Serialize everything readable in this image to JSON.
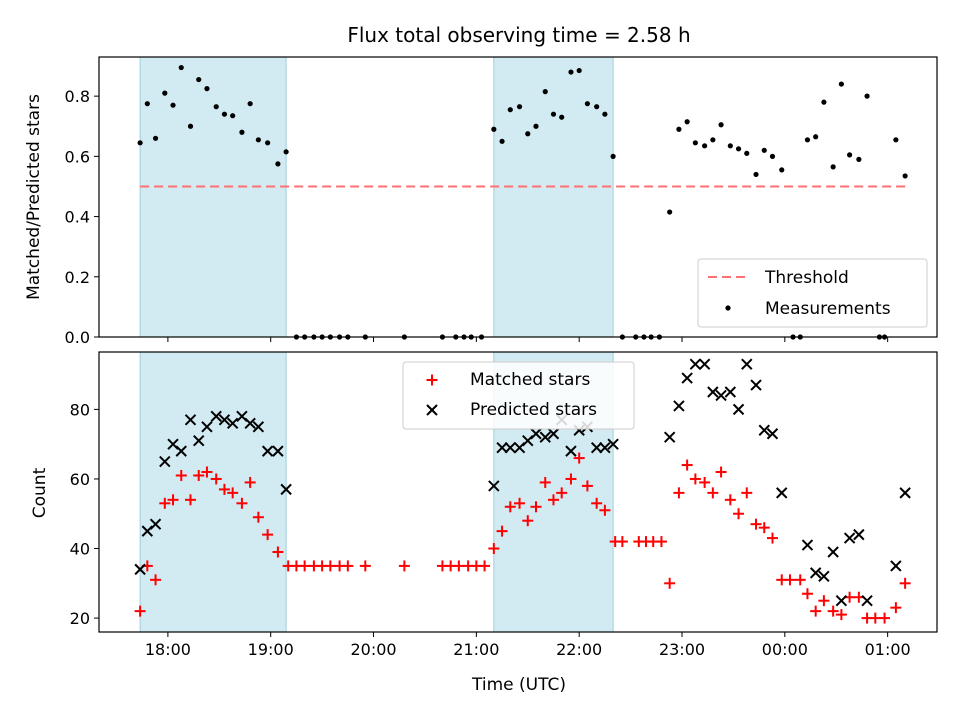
{
  "chart_data": {
    "title": "Flux total observing time = 2.58 h",
    "xlabel": "Time (UTC)",
    "x_unit": "hours (UTC, continuing past midnight)",
    "xlim": [
      17.33,
      25.48
    ],
    "xticks": [
      {
        "value": 18,
        "label": "18:00"
      },
      {
        "value": 19,
        "label": "19:00"
      },
      {
        "value": 20,
        "label": "20:00"
      },
      {
        "value": 21,
        "label": "21:00"
      },
      {
        "value": 22,
        "label": "22:00"
      },
      {
        "value": 23,
        "label": "23:00"
      },
      {
        "value": 24,
        "label": "00:00"
      },
      {
        "value": 25,
        "label": "01:00"
      }
    ],
    "shaded_intervals": [
      [
        17.73,
        19.15
      ],
      [
        21.17,
        22.33
      ]
    ],
    "shade_color": "#add8e6",
    "panels": [
      {
        "type": "scatter",
        "ylabel": "Matched/Predicted stars",
        "ylim": [
          0,
          0.93
        ],
        "yticks": [
          {
            "value": 0.0,
            "label": "0.0"
          },
          {
            "value": 0.2,
            "label": "0.2"
          },
          {
            "value": 0.4,
            "label": "0.4"
          },
          {
            "value": 0.6,
            "label": "0.6"
          },
          {
            "value": 0.8,
            "label": "0.8"
          }
        ],
        "threshold": {
          "name": "Threshold",
          "value": 0.5,
          "color": "#ff7070",
          "style": "dashed"
        },
        "legend_position": "lower-right",
        "series": [
          {
            "name": "Measurements",
            "marker": "dot",
            "color": "#000000",
            "points": [
              [
                17.73,
                0.645
              ],
              [
                17.8,
                0.775
              ],
              [
                17.88,
                0.66
              ],
              [
                17.97,
                0.81
              ],
              [
                18.05,
                0.77
              ],
              [
                18.13,
                0.895
              ],
              [
                18.22,
                0.7
              ],
              [
                18.3,
                0.855
              ],
              [
                18.38,
                0.825
              ],
              [
                18.47,
                0.765
              ],
              [
                18.55,
                0.74
              ],
              [
                18.63,
                0.735
              ],
              [
                18.72,
                0.68
              ],
              [
                18.8,
                0.775
              ],
              [
                18.88,
                0.655
              ],
              [
                18.97,
                0.645
              ],
              [
                19.07,
                0.575
              ],
              [
                19.15,
                0.615
              ],
              [
                19.25,
                0.0
              ],
              [
                19.33,
                0.0
              ],
              [
                19.42,
                0.0
              ],
              [
                19.5,
                0.0
              ],
              [
                19.58,
                0.0
              ],
              [
                19.67,
                0.0
              ],
              [
                19.75,
                0.0
              ],
              [
                19.92,
                0.0
              ],
              [
                20.3,
                0.0
              ],
              [
                20.67,
                0.0
              ],
              [
                20.8,
                0.0
              ],
              [
                20.88,
                0.0
              ],
              [
                20.95,
                0.0
              ],
              [
                21.05,
                0.0
              ],
              [
                21.17,
                0.69
              ],
              [
                21.25,
                0.65
              ],
              [
                21.33,
                0.755
              ],
              [
                21.42,
                0.765
              ],
              [
                21.5,
                0.675
              ],
              [
                21.58,
                0.7
              ],
              [
                21.67,
                0.815
              ],
              [
                21.75,
                0.74
              ],
              [
                21.83,
                0.73
              ],
              [
                21.92,
                0.88
              ],
              [
                22.0,
                0.885
              ],
              [
                22.08,
                0.775
              ],
              [
                22.17,
                0.765
              ],
              [
                22.25,
                0.74
              ],
              [
                22.33,
                0.6
              ],
              [
                22.42,
                0.0
              ],
              [
                22.55,
                0.0
              ],
              [
                22.63,
                0.0
              ],
              [
                22.7,
                0.0
              ],
              [
                22.78,
                0.0
              ],
              [
                22.88,
                0.415
              ],
              [
                22.97,
                0.69
              ],
              [
                23.05,
                0.715
              ],
              [
                23.13,
                0.645
              ],
              [
                23.22,
                0.635
              ],
              [
                23.3,
                0.655
              ],
              [
                23.38,
                0.705
              ],
              [
                23.47,
                0.635
              ],
              [
                23.55,
                0.625
              ],
              [
                23.63,
                0.61
              ],
              [
                23.72,
                0.54
              ],
              [
                23.8,
                0.62
              ],
              [
                23.88,
                0.6
              ],
              [
                23.97,
                0.555
              ],
              [
                24.08,
                0.0
              ],
              [
                24.15,
                0.0
              ],
              [
                24.22,
                0.655
              ],
              [
                24.3,
                0.665
              ],
              [
                24.38,
                0.78
              ],
              [
                24.47,
                0.565
              ],
              [
                24.55,
                0.84
              ],
              [
                24.63,
                0.605
              ],
              [
                24.72,
                0.59
              ],
              [
                24.8,
                0.8
              ],
              [
                24.92,
                0.0
              ],
              [
                24.97,
                0.0
              ],
              [
                25.08,
                0.655
              ],
              [
                25.17,
                0.535
              ]
            ]
          }
        ]
      },
      {
        "type": "scatter",
        "ylabel": "Count",
        "ylim": [
          16,
          96.5
        ],
        "yticks": [
          {
            "value": 20,
            "label": "20"
          },
          {
            "value": 40,
            "label": "40"
          },
          {
            "value": 60,
            "label": "60"
          },
          {
            "value": 80,
            "label": "80"
          }
        ],
        "legend_position": "upper-center",
        "series": [
          {
            "name": "Matched stars",
            "marker": "plus",
            "color": "#ff0000",
            "points": [
              [
                17.73,
                22
              ],
              [
                17.8,
                35
              ],
              [
                17.88,
                31
              ],
              [
                17.97,
                53
              ],
              [
                18.05,
                54
              ],
              [
                18.13,
                61
              ],
              [
                18.22,
                54
              ],
              [
                18.3,
                61
              ],
              [
                18.38,
                62
              ],
              [
                18.47,
                60
              ],
              [
                18.55,
                57
              ],
              [
                18.63,
                56
              ],
              [
                18.72,
                53
              ],
              [
                18.8,
                59
              ],
              [
                18.88,
                49
              ],
              [
                18.97,
                44
              ],
              [
                19.07,
                39
              ],
              [
                19.17,
                35
              ],
              [
                19.25,
                35
              ],
              [
                19.33,
                35
              ],
              [
                19.42,
                35
              ],
              [
                19.5,
                35
              ],
              [
                19.58,
                35
              ],
              [
                19.67,
                35
              ],
              [
                19.75,
                35
              ],
              [
                19.92,
                35
              ],
              [
                20.3,
                35
              ],
              [
                20.67,
                35
              ],
              [
                20.75,
                35
              ],
              [
                20.83,
                35
              ],
              [
                20.92,
                35
              ],
              [
                21.0,
                35
              ],
              [
                21.08,
                35
              ],
              [
                21.17,
                40
              ],
              [
                21.25,
                45
              ],
              [
                21.33,
                52
              ],
              [
                21.42,
                53
              ],
              [
                21.5,
                48
              ],
              [
                21.58,
                52
              ],
              [
                21.67,
                59
              ],
              [
                21.75,
                54
              ],
              [
                21.83,
                56
              ],
              [
                21.92,
                60
              ],
              [
                22.0,
                66
              ],
              [
                22.08,
                58
              ],
              [
                22.17,
                53
              ],
              [
                22.25,
                51
              ],
              [
                22.35,
                42
              ],
              [
                22.42,
                42
              ],
              [
                22.58,
                42
              ],
              [
                22.65,
                42
              ],
              [
                22.72,
                42
              ],
              [
                22.8,
                42
              ],
              [
                22.88,
                30
              ],
              [
                22.97,
                56
              ],
              [
                23.05,
                64
              ],
              [
                23.13,
                60
              ],
              [
                23.22,
                59
              ],
              [
                23.3,
                56
              ],
              [
                23.38,
                62
              ],
              [
                23.47,
                54
              ],
              [
                23.55,
                50
              ],
              [
                23.63,
                56
              ],
              [
                23.72,
                47
              ],
              [
                23.8,
                46
              ],
              [
                23.88,
                43
              ],
              [
                23.97,
                31
              ],
              [
                24.05,
                31
              ],
              [
                24.15,
                31
              ],
              [
                24.22,
                27
              ],
              [
                24.3,
                22
              ],
              [
                24.38,
                25
              ],
              [
                24.47,
                22
              ],
              [
                24.55,
                21
              ],
              [
                24.63,
                26
              ],
              [
                24.72,
                26
              ],
              [
                24.8,
                20
              ],
              [
                24.88,
                20
              ],
              [
                24.97,
                20
              ],
              [
                25.08,
                23
              ],
              [
                25.17,
                30
              ]
            ]
          },
          {
            "name": "Predicted stars",
            "marker": "x",
            "color": "#000000",
            "points": [
              [
                17.73,
                34
              ],
              [
                17.8,
                45
              ],
              [
                17.88,
                47
              ],
              [
                17.97,
                65
              ],
              [
                18.05,
                70
              ],
              [
                18.13,
                68
              ],
              [
                18.22,
                77
              ],
              [
                18.3,
                71
              ],
              [
                18.38,
                75
              ],
              [
                18.47,
                78
              ],
              [
                18.55,
                77
              ],
              [
                18.63,
                76
              ],
              [
                18.72,
                78
              ],
              [
                18.8,
                76
              ],
              [
                18.88,
                75
              ],
              [
                18.97,
                68
              ],
              [
                19.07,
                68
              ],
              [
                19.15,
                57
              ],
              [
                21.17,
                58
              ],
              [
                21.25,
                69
              ],
              [
                21.33,
                69
              ],
              [
                21.42,
                69
              ],
              [
                21.5,
                71
              ],
              [
                21.58,
                73
              ],
              [
                21.67,
                72
              ],
              [
                21.75,
                73
              ],
              [
                21.83,
                77
              ],
              [
                21.92,
                68
              ],
              [
                22.0,
                74
              ],
              [
                22.08,
                75
              ],
              [
                22.17,
                69
              ],
              [
                22.25,
                69
              ],
              [
                22.33,
                70
              ],
              [
                22.88,
                72
              ],
              [
                22.97,
                81
              ],
              [
                23.05,
                89
              ],
              [
                23.13,
                93
              ],
              [
                23.22,
                93
              ],
              [
                23.3,
                85
              ],
              [
                23.38,
                84
              ],
              [
                23.47,
                85
              ],
              [
                23.55,
                80
              ],
              [
                23.63,
                93
              ],
              [
                23.72,
                87
              ],
              [
                23.8,
                74
              ],
              [
                23.88,
                73
              ],
              [
                23.97,
                56
              ],
              [
                24.22,
                41
              ],
              [
                24.3,
                33
              ],
              [
                24.38,
                32
              ],
              [
                24.47,
                39
              ],
              [
                24.55,
                25
              ],
              [
                24.63,
                43
              ],
              [
                24.72,
                44
              ],
              [
                24.8,
                25
              ],
              [
                25.08,
                35
              ],
              [
                25.17,
                56
              ]
            ]
          }
        ]
      }
    ]
  }
}
